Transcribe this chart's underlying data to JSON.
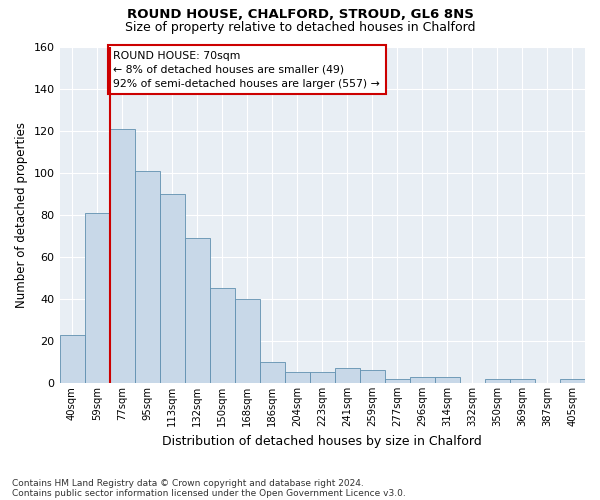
{
  "title1": "ROUND HOUSE, CHALFORD, STROUD, GL6 8NS",
  "title2": "Size of property relative to detached houses in Chalford",
  "xlabel": "Distribution of detached houses by size in Chalford",
  "ylabel": "Number of detached properties",
  "categories": [
    "40sqm",
    "59sqm",
    "77sqm",
    "95sqm",
    "113sqm",
    "132sqm",
    "150sqm",
    "168sqm",
    "186sqm",
    "204sqm",
    "223sqm",
    "241sqm",
    "259sqm",
    "277sqm",
    "296sqm",
    "314sqm",
    "332sqm",
    "350sqm",
    "369sqm",
    "387sqm",
    "405sqm"
  ],
  "values": [
    23,
    81,
    121,
    101,
    90,
    69,
    45,
    40,
    10,
    5,
    5,
    7,
    6,
    2,
    3,
    3,
    0,
    2,
    2,
    0,
    2
  ],
  "bar_color": "#c8d8e8",
  "bar_edge_color": "#6090b0",
  "vline_color": "#cc0000",
  "vline_x": 1.5,
  "annotation_text": "ROUND HOUSE: 70sqm\n← 8% of detached houses are smaller (49)\n92% of semi-detached houses are larger (557) →",
  "annotation_box_facecolor": "#ffffff",
  "annotation_box_edgecolor": "#cc0000",
  "ylim": [
    0,
    160
  ],
  "yticks": [
    0,
    20,
    40,
    60,
    80,
    100,
    120,
    140,
    160
  ],
  "footnote1": "Contains HM Land Registry data © Crown copyright and database right 2024.",
  "footnote2": "Contains public sector information licensed under the Open Government Licence v3.0.",
  "bg_color": "#ffffff",
  "plot_bg_color": "#e8eef4",
  "grid_color": "#ffffff",
  "title1_fontsize": 9.5,
  "title2_fontsize": 9,
  "bar_edge_linewidth": 0.6
}
